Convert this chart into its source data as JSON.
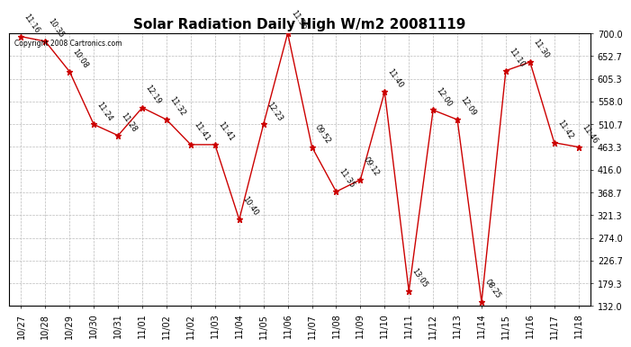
{
  "title": "Solar Radiation Daily High W/m2 20081119",
  "copyright": "Copyright 2008 Cartronics.com",
  "x_labels": [
    "10/27",
    "10/28",
    "10/29",
    "10/30",
    "10/31",
    "11/01",
    "11/02",
    "11/02",
    "11/03",
    "11/04",
    "11/05",
    "11/06",
    "11/07",
    "11/08",
    "11/09",
    "11/10",
    "11/11",
    "11/12",
    "11/13",
    "11/14",
    "11/15",
    "11/16",
    "11/17",
    "11/18"
  ],
  "y_values": [
    693,
    683,
    620,
    510,
    487,
    545,
    520,
    468,
    468,
    312,
    510,
    700,
    463,
    370,
    395,
    578,
    163,
    540,
    520,
    140,
    622,
    640,
    472,
    463
  ],
  "time_labels": [
    "11:16",
    "10:35",
    "10:08",
    "11:24",
    "11:28",
    "12:19",
    "11:32",
    "11:41",
    "11:41",
    "10:40",
    "12:23",
    "11:36",
    "09:52",
    "11:35",
    "09:12",
    "11:40",
    "13:05",
    "12:00",
    "12:09",
    "08:25",
    "11:10",
    "11:30",
    "11:42",
    "11:46"
  ],
  "ylim_min": 132.0,
  "ylim_max": 700.0,
  "yticks": [
    132.0,
    179.3,
    226.7,
    274.0,
    321.3,
    368.7,
    416.0,
    463.3,
    510.7,
    558.0,
    605.3,
    652.7,
    700.0
  ],
  "line_color": "#cc0000",
  "marker_color": "#cc0000",
  "bg_color": "#ffffff",
  "grid_color": "#bbbbbb",
  "title_fontsize": 11,
  "annot_fontsize": 6.0,
  "tick_fontsize": 7,
  "ytick_fontsize": 7
}
